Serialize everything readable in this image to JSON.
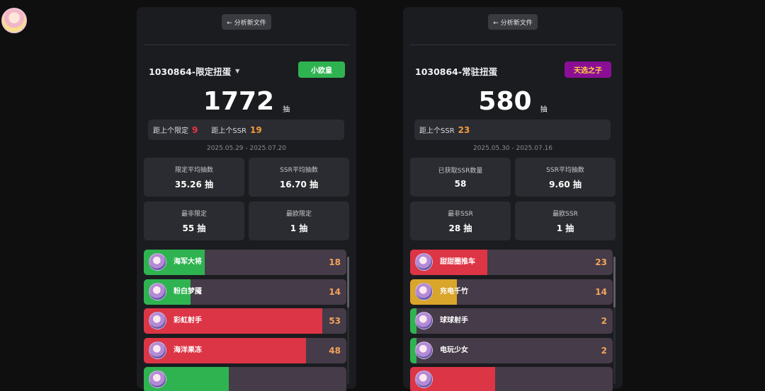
{
  "user": {
    "avatar_icon": "anime-girl-avatar"
  },
  "panels": [
    {
      "new_file_label": "← 分析新文件",
      "pool_title": "1030864-限定扭蛋",
      "has_dropdown": true,
      "badge": {
        "label": "小欧皇",
        "bg": "#2fb351",
        "fg": "#ffffff"
      },
      "total": "1772",
      "total_unit": "抽",
      "distance": [
        {
          "label": "距上个限定",
          "value": "9",
          "color": "red"
        },
        {
          "label": "距上个SSR",
          "value": "19",
          "color": "orange"
        }
      ],
      "date_range": "2025.05.29 - 2025.07.20",
      "stats": [
        {
          "label": "限定平均抽数",
          "value": "35.26 抽"
        },
        {
          "label": "SSR平均抽数",
          "value": "16.70 抽"
        },
        {
          "label": "最非限定",
          "value": "55 抽"
        },
        {
          "label": "最欧限定",
          "value": "1 抽"
        }
      ],
      "pulls": [
        {
          "name": "海军大将",
          "count": "18",
          "fill": 0.3,
          "color": "#2fb351"
        },
        {
          "name": "粉白梦魇",
          "count": "14",
          "fill": 0.23,
          "color": "#2fb351"
        },
        {
          "name": "彩虹射手",
          "count": "53",
          "fill": 0.88,
          "color": "#dc3545"
        },
        {
          "name": "海洋果冻",
          "count": "48",
          "fill": 0.8,
          "color": "#dc3545"
        },
        {
          "name": "",
          "count": "",
          "fill": 0.42,
          "color": "#2fb351"
        }
      ]
    },
    {
      "new_file_label": "← 分析新文件",
      "pool_title": "1030864-常驻扭蛋",
      "has_dropdown": false,
      "badge": {
        "label": "天选之子",
        "bg": "#8a0f96",
        "fg": "#ffd23a"
      },
      "total": "580",
      "total_unit": "抽",
      "distance": [
        {
          "label": "距上个SSR",
          "value": "23",
          "color": "orange"
        }
      ],
      "date_range": "2025.05.30 - 2025.07.16",
      "stats": [
        {
          "label": "已获取SSR数量",
          "value": "58"
        },
        {
          "label": "SSR平均抽数",
          "value": "9.60 抽"
        },
        {
          "label": "最非SSR",
          "value": "28 抽"
        },
        {
          "label": "最欧SSR",
          "value": "1 抽"
        }
      ],
      "pulls": [
        {
          "name": "甜甜圈推车",
          "count": "23",
          "fill": 0.38,
          "color": "#dc3545"
        },
        {
          "name": "充电千竹",
          "count": "14",
          "fill": 0.23,
          "color": "#d9a52b"
        },
        {
          "name": "球球射手",
          "count": "2",
          "fill": 0.03,
          "color": "#2fb351"
        },
        {
          "name": "电玩少女",
          "count": "2",
          "fill": 0.03,
          "color": "#2fb351"
        },
        {
          "name": "",
          "count": "",
          "fill": 0.42,
          "color": "#dc3545"
        }
      ]
    }
  ]
}
